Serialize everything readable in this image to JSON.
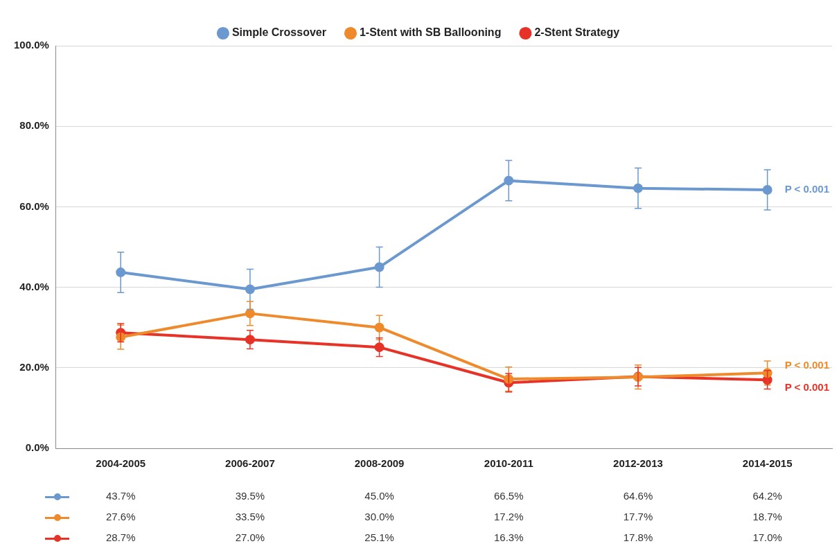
{
  "chart_data": {
    "type": "line",
    "categories": [
      "2004-2005",
      "2006-2007",
      "2008-2009",
      "2010-2011",
      "2012-2013",
      "2014-2015"
    ],
    "series": [
      {
        "name": "Simple Crossover",
        "color": "#6a98cf",
        "values": [
          43.7,
          39.5,
          45.0,
          66.5,
          64.6,
          64.2
        ],
        "errors": [
          5,
          5,
          5,
          5,
          5,
          5
        ],
        "value_labels": [
          "43.7%",
          "39.5%",
          "45.0%",
          "66.5%",
          "64.6%",
          "64.2%"
        ]
      },
      {
        "name": "1-Stent with SB Ballooning",
        "color": "#ee8a2c",
        "values": [
          27.6,
          33.5,
          30.0,
          17.2,
          17.7,
          18.7
        ],
        "errors": [
          3,
          3,
          3,
          3,
          3,
          3
        ],
        "value_labels": [
          "27.6%",
          "33.5%",
          "30.0%",
          "17.2%",
          "17.7%",
          "18.7%"
        ]
      },
      {
        "name": "2-Stent Strategy",
        "color": "#e63227",
        "values": [
          28.7,
          27.0,
          25.1,
          16.3,
          17.8,
          17.0
        ],
        "errors": [
          2.3,
          2.3,
          2.3,
          2.3,
          2.3,
          2.3
        ],
        "value_labels": [
          "28.7%",
          "27.0%",
          "25.1%",
          "16.3%",
          "17.8%",
          "17.0%"
        ]
      }
    ],
    "ylim": [
      0,
      100
    ],
    "yticks": [
      {
        "value": 0,
        "label": "0.0%"
      },
      {
        "value": 20,
        "label": "20.0%"
      },
      {
        "value": 40,
        "label": "40.0%"
      },
      {
        "value": 60,
        "label": "60.0%"
      },
      {
        "value": 80,
        "label": "80.0%"
      },
      {
        "value": 100,
        "label": "100.0%"
      }
    ],
    "grid": "y",
    "legend": "top",
    "marker": "circle",
    "line_style": "solid",
    "annotations": [
      {
        "text": "P < 0.001",
        "x": "2014-2015",
        "y": 64.2
      },
      {
        "text": "P < 0.001",
        "x": "2014-2015",
        "y": 18.7
      },
      {
        "text": "P < 0.001",
        "x": "2014-2015",
        "y": 17.0
      }
    ]
  }
}
